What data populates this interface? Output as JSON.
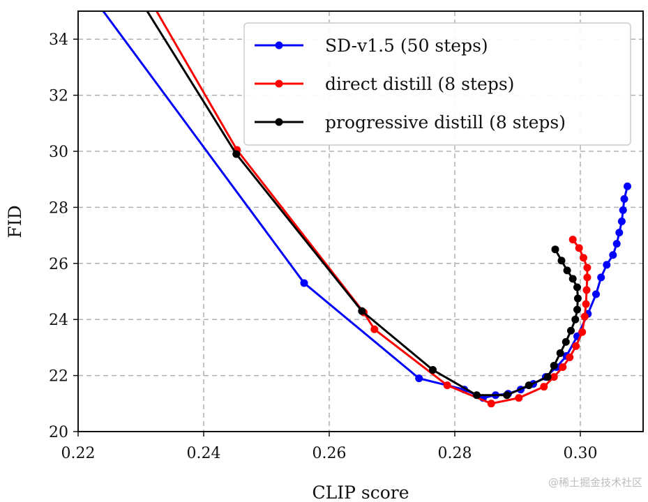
{
  "chart_data": {
    "type": "line",
    "xlabel": "CLIP score",
    "ylabel": "FID",
    "xlim": [
      0.22,
      0.31
    ],
    "ylim": [
      20,
      35
    ],
    "xticks": [
      "0.22",
      "0.24",
      "0.26",
      "0.28",
      "0.30"
    ],
    "yticks": [
      "20",
      "22",
      "24",
      "26",
      "28",
      "30",
      "32",
      "34"
    ],
    "grid": true,
    "legend_position": "top-right",
    "series": [
      {
        "name": "SD-v1.5 (50 steps)",
        "color": "#0000ff",
        "points": [
          [
            0.224,
            35.0
          ],
          [
            0.256,
            25.3
          ],
          [
            0.2743,
            21.9
          ],
          [
            0.2815,
            21.5
          ],
          [
            0.2845,
            21.2
          ],
          [
            0.2865,
            21.3
          ],
          [
            0.2885,
            21.35
          ],
          [
            0.2905,
            21.5
          ],
          [
            0.2925,
            21.7
          ],
          [
            0.2945,
            21.95
          ],
          [
            0.2962,
            22.3
          ],
          [
            0.2978,
            22.7
          ],
          [
            0.2995,
            23.4
          ],
          [
            0.3012,
            24.2
          ],
          [
            0.3025,
            24.9
          ],
          [
            0.3033,
            25.5
          ],
          [
            0.3042,
            25.95
          ],
          [
            0.3052,
            26.3
          ],
          [
            0.3058,
            26.7
          ],
          [
            0.3062,
            27.1
          ],
          [
            0.3066,
            27.5
          ],
          [
            0.3068,
            27.9
          ],
          [
            0.307,
            28.3
          ],
          [
            0.3075,
            28.75
          ]
        ]
      },
      {
        "name": "direct distill (8 steps)",
        "color": "#ff0000",
        "points": [
          [
            0.2325,
            35.0
          ],
          [
            0.2453,
            30.05
          ],
          [
            0.2655,
            24.25
          ],
          [
            0.2672,
            23.65
          ],
          [
            0.2788,
            21.65
          ],
          [
            0.2858,
            21.0
          ],
          [
            0.2902,
            21.2
          ],
          [
            0.2942,
            21.6
          ],
          [
            0.2958,
            21.95
          ],
          [
            0.2972,
            22.3
          ],
          [
            0.2983,
            22.65
          ],
          [
            0.2993,
            23.05
          ],
          [
            0.3003,
            23.55
          ],
          [
            0.3007,
            24.1
          ],
          [
            0.3009,
            24.55
          ],
          [
            0.301,
            25.05
          ],
          [
            0.3011,
            25.5
          ],
          [
            0.3011,
            25.85
          ],
          [
            0.3005,
            26.2
          ],
          [
            0.2998,
            26.55
          ],
          [
            0.2988,
            26.85
          ]
        ]
      },
      {
        "name": "progressive distill (8 steps)",
        "color": "#000000",
        "points": [
          [
            0.231,
            35.0
          ],
          [
            0.2452,
            29.9
          ],
          [
            0.2652,
            24.3
          ],
          [
            0.2765,
            22.2
          ],
          [
            0.2835,
            21.3
          ],
          [
            0.2883,
            21.3
          ],
          [
            0.2918,
            21.65
          ],
          [
            0.2948,
            21.95
          ],
          [
            0.2958,
            22.35
          ],
          [
            0.2968,
            22.8
          ],
          [
            0.2977,
            23.2
          ],
          [
            0.2985,
            23.6
          ],
          [
            0.2992,
            24.0
          ],
          [
            0.2995,
            24.35
          ],
          [
            0.2996,
            24.75
          ],
          [
            0.2995,
            25.15
          ],
          [
            0.2988,
            25.45
          ],
          [
            0.2979,
            25.75
          ],
          [
            0.297,
            26.1
          ],
          [
            0.296,
            26.5
          ]
        ]
      }
    ]
  },
  "watermark": "@稀土掘金技术社区"
}
